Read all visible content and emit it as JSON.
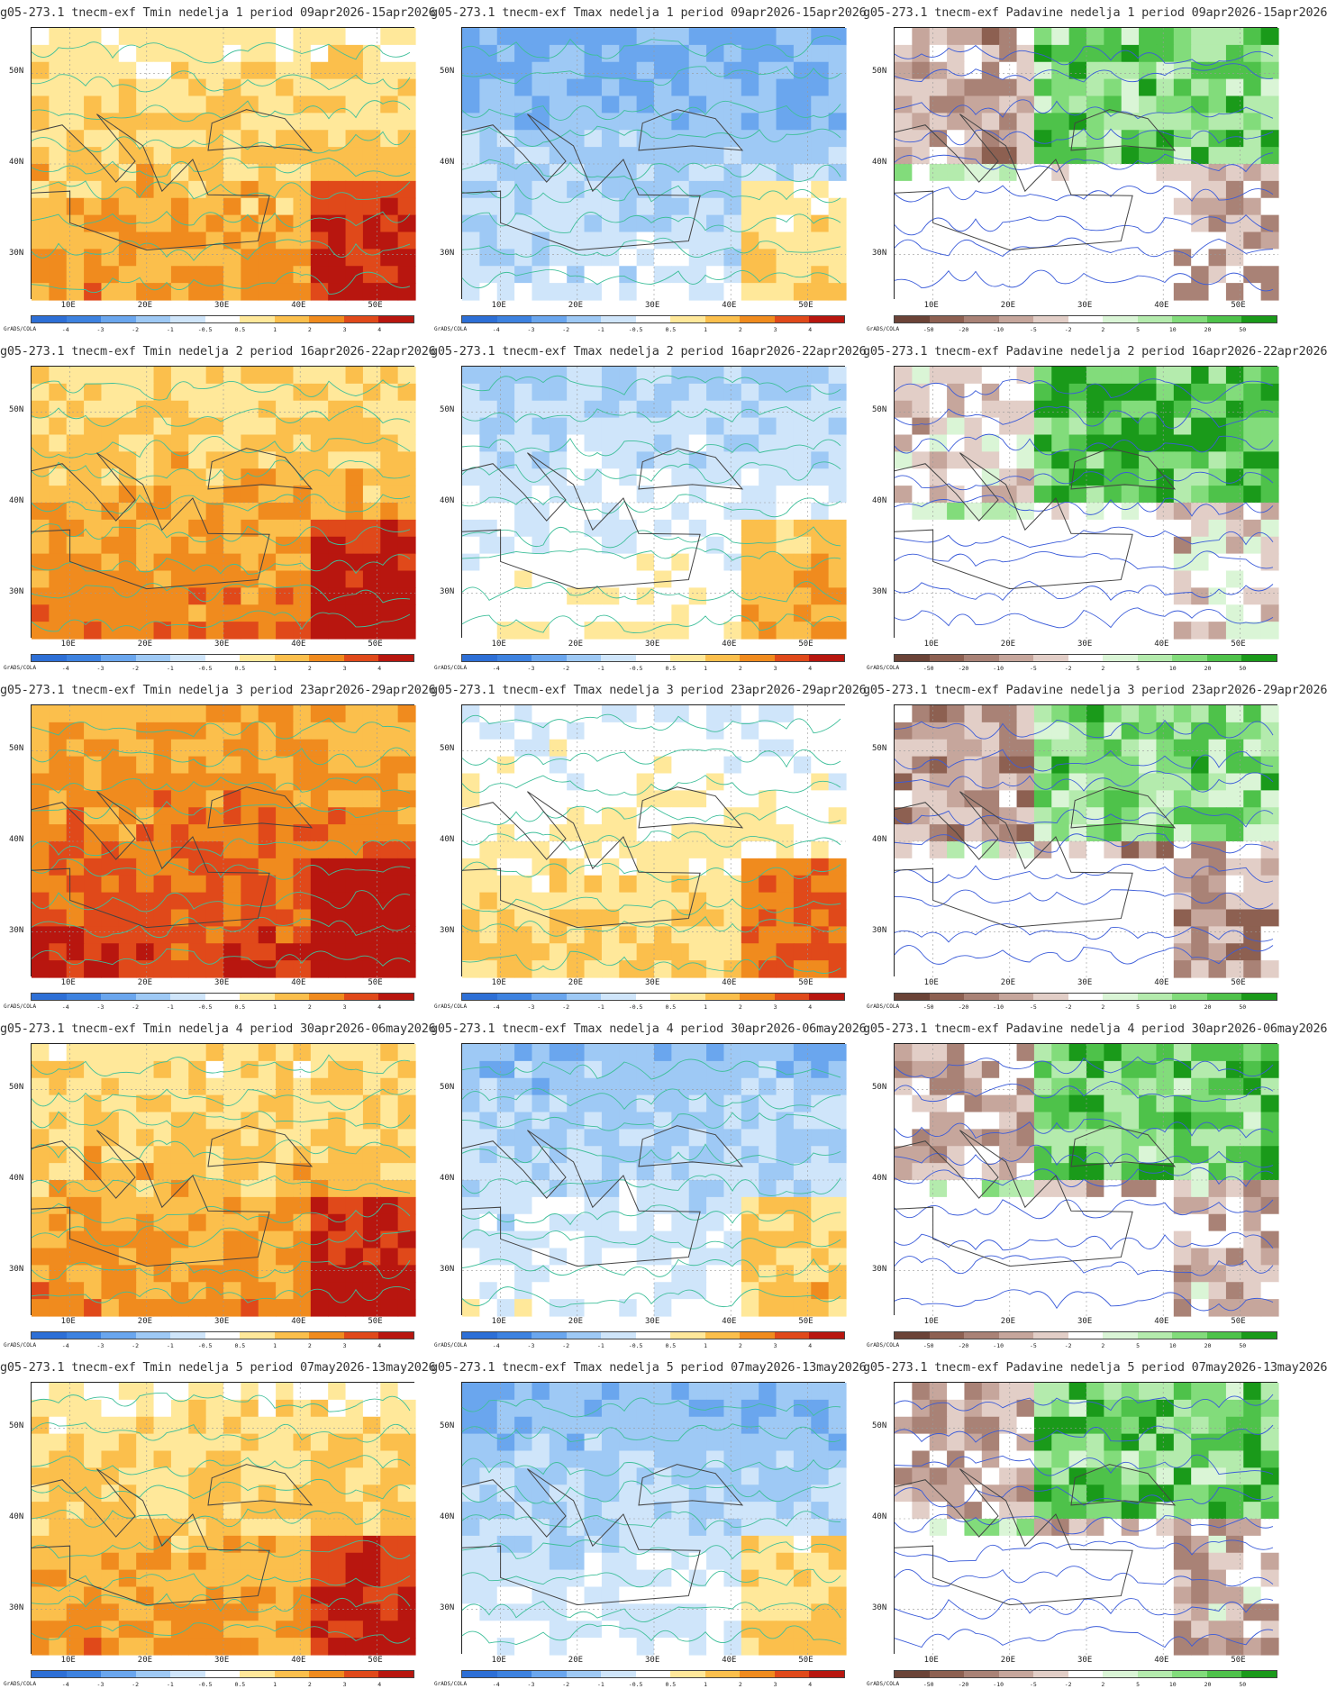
{
  "credit": "GrADS/COLA",
  "axes": {
    "lat_labels": [
      "50N",
      "40N",
      "30N"
    ],
    "lon_labels": [
      "10E",
      "20E",
      "30E",
      "40E",
      "50E"
    ]
  },
  "colorbars": {
    "temperature": {
      "ticks": [
        "-4",
        "-3",
        "-2",
        "-1",
        "-0.5",
        "0.5",
        "1",
        "2",
        "3",
        "4"
      ],
      "colors": [
        "#2d6fd6",
        "#3d82e0",
        "#6aa6ee",
        "#9ec9f5",
        "#cfe5fa",
        "#ffffff",
        "#ffe89a",
        "#fbbf4c",
        "#f08b1e",
        "#e0491a",
        "#b8160f"
      ]
    },
    "precip": {
      "ticks": [
        "-50",
        "-20",
        "-10",
        "-5",
        "-2",
        "2",
        "5",
        "10",
        "20",
        "50"
      ],
      "colors": [
        "#6b4337",
        "#8d6051",
        "#a98276",
        "#c6a69c",
        "#e2cec7",
        "#ffffff",
        "#daf5d6",
        "#b4ebad",
        "#82dc7b",
        "#4ec24a",
        "#1a9a1a"
      ]
    }
  },
  "panels": [
    {
      "title": "g05-273.1 tnecm-exf Tmin nedelja 1 period 09apr2026-15apr2026",
      "kind": "temperature",
      "tone": 0.35
    },
    {
      "title": "g05-273.1 tnecm-exf Tmax nedelja 1 period 09apr2026-15apr2026",
      "kind": "temperature",
      "tone": -0.55
    },
    {
      "title": "g05-273.1 tnecm-exf Padavine nedelja 1 period 09apr2026-15apr2026",
      "kind": "precip",
      "tone": 0.0
    },
    {
      "title": "g05-273.1 tnecm-exf Tmin nedelja 2 period 16apr2026-22apr2026",
      "kind": "temperature",
      "tone": 0.45
    },
    {
      "title": "g05-273.1 tnecm-exf Tmax nedelja 2 period 16apr2026-22apr2026",
      "kind": "temperature",
      "tone": -0.25
    },
    {
      "title": "g05-273.1 tnecm-exf Padavine nedelja 2 period 16apr2026-22apr2026",
      "kind": "precip",
      "tone": 0.15
    },
    {
      "title": "g05-273.1 tnecm-exf Tmin nedelja 3 period 23apr2026-29apr2026",
      "kind": "temperature",
      "tone": 0.7
    },
    {
      "title": "g05-273.1 tnecm-exf Tmax nedelja 3 period 23apr2026-29apr2026",
      "kind": "temperature",
      "tone": 0.05
    },
    {
      "title": "g05-273.1 tnecm-exf Padavine nedelja 3 period 23apr2026-29apr2026",
      "kind": "precip",
      "tone": -0.05
    },
    {
      "title": "g05-273.1 tnecm-exf Tmin nedelja 4 period 30apr2026-06may2026",
      "kind": "temperature",
      "tone": 0.4
    },
    {
      "title": "g05-273.1 tnecm-exf Tmax nedelja 4 period 30apr2026-06may2026",
      "kind": "temperature",
      "tone": -0.4
    },
    {
      "title": "g05-273.1 tnecm-exf Padavine nedelja 4 period 30apr2026-06may2026",
      "kind": "precip",
      "tone": 0.05
    },
    {
      "title": "g05-273.1 tnecm-exf Tmin nedelja 5 period 07may2026-13may2026",
      "kind": "temperature",
      "tone": 0.35
    },
    {
      "title": "g05-273.1 tnecm-exf Tmax nedelja 5 period 07may2026-13may2026",
      "kind": "temperature",
      "tone": -0.45
    },
    {
      "title": "g05-273.1 tnecm-exf Padavine nedelja 5 period 07may2026-13may2026",
      "kind": "precip",
      "tone": 0.05
    }
  ]
}
